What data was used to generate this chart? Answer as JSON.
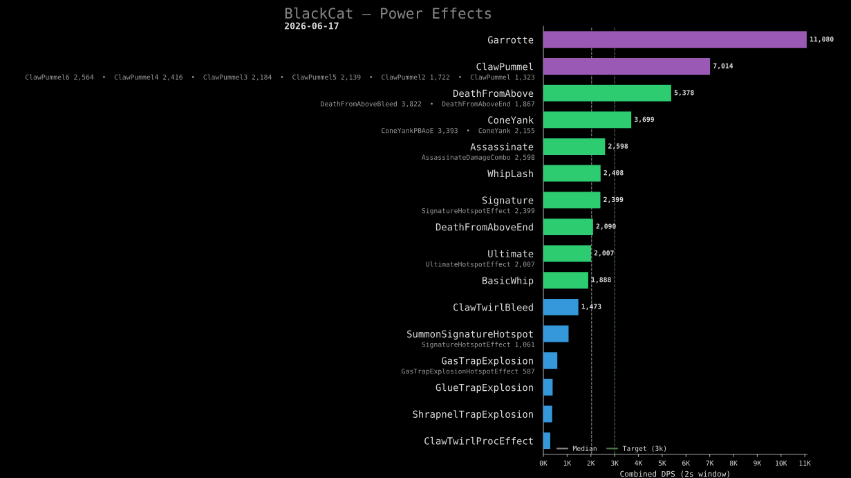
{
  "chart_data": {
    "type": "bar",
    "orientation": "horizontal",
    "title": "BlackCat — Power Effects",
    "subtitle": "2026-06-17",
    "xlabel": "Combined DPS (2s window)",
    "categories": [
      "Garrotte",
      "ClawPummel",
      "DeathFromAbove",
      "ConeYank",
      "Assassinate",
      "WhipLash",
      "Signature",
      "DeathFromAboveEnd",
      "Ultimate",
      "BasicWhip",
      "ClawTwirlBleed",
      "SummonSignatureHotspot",
      "GasTrapExplosion",
      "GlueTrapExplosion",
      "ShrapnelTrapExplosion",
      "ClawTwirlProcEffect"
    ],
    "values": [
      11080,
      7014,
      5378,
      3699,
      2598,
      2408,
      2399,
      2090,
      2007,
      1888,
      1473,
      1061,
      587,
      390,
      370,
      290
    ],
    "value_labels": [
      "11,080",
      "7,014",
      "5,378",
      "3,699",
      "2,598",
      "2,408",
      "2,399",
      "2,090",
      "2,007",
      "1,888",
      "1,473",
      null,
      null,
      null,
      null,
      null
    ],
    "colors": [
      "#9b59b6",
      "#9b59b6",
      "#2ecc71",
      "#2ecc71",
      "#2ecc71",
      "#2ecc71",
      "#2ecc71",
      "#2ecc71",
      "#2ecc71",
      "#2ecc71",
      "#3498db",
      "#3498db",
      "#3498db",
      "#3498db",
      "#3498db",
      "#3498db"
    ],
    "annotations": [
      null,
      "ClawPummel6 2,564  •  ClawPummel4 2,416  •  ClawPummel3 2,184  •  ClawPummel5 2,139  •  ClawPummel2 1,722  •  ClawPummel 1,323",
      "DeathFromAboveBleed 3,822  •  DeathFromAboveEnd 1,867",
      "ConeYankPBAoE 3,393  •  ConeYank 2,155",
      "AssassinateDamageCombo 2,598",
      null,
      "SignatureHotspotEffect 2,399",
      null,
      "UltimateHotspotEffect 2,007",
      null,
      null,
      "SignatureHotspotEffect 1,061",
      "GasTrapExplosionHotspotEffect 587",
      null,
      null,
      null
    ],
    "ref_lines": [
      {
        "axis": "x",
        "value": 2030,
        "label": "Median",
        "color": "#888888",
        "line_style": "dashed"
      },
      {
        "axis": "x",
        "value": 3000,
        "label": "Target (3k)",
        "color": "#4a7a4a",
        "line_style": "dashed"
      }
    ],
    "xlim": [
      0,
      11100
    ],
    "xticks": [
      {
        "value": 0,
        "label": "0K"
      },
      {
        "value": 1000,
        "label": "1K"
      },
      {
        "value": 2000,
        "label": "2K"
      },
      {
        "value": 3000,
        "label": "3K"
      },
      {
        "value": 4000,
        "label": "4K"
      },
      {
        "value": 5000,
        "label": "5K"
      },
      {
        "value": 6000,
        "label": "6K"
      },
      {
        "value": 7000,
        "label": "7K"
      },
      {
        "value": 8000,
        "label": "8K"
      },
      {
        "value": 9000,
        "label": "9K"
      },
      {
        "value": 10000,
        "label": "10K"
      },
      {
        "value": 11000,
        "label": "11K"
      }
    ],
    "grid": false,
    "legend": "bottom left"
  }
}
